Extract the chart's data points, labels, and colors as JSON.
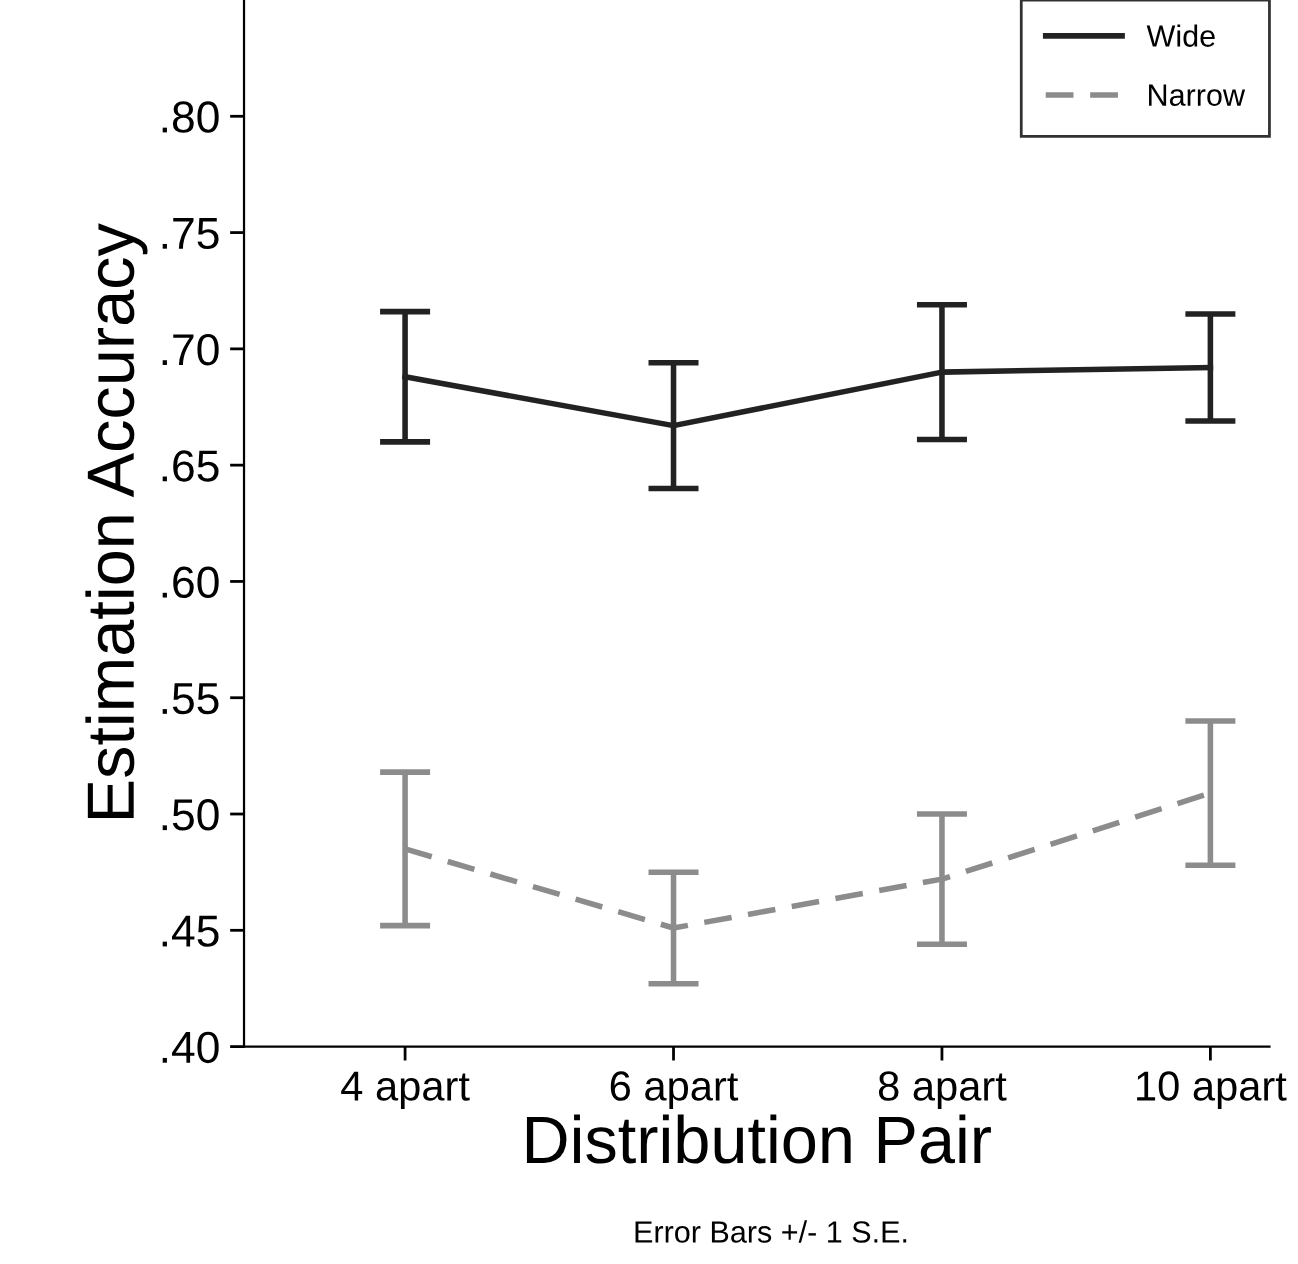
{
  "chart_data": {
    "type": "line",
    "xlabel": "Distribution Pair",
    "ylabel": "Estimation Accuracy",
    "categories": [
      "4 apart",
      "6 apart",
      "8 apart",
      "10 apart"
    ],
    "series": [
      {
        "name": "Wide",
        "color": "#222222",
        "line_style": "solid",
        "values": [
          0.688,
          0.667,
          0.69,
          0.692
        ],
        "errors": [
          0.028,
          0.027,
          0.029,
          0.023
        ]
      },
      {
        "name": "Narrow",
        "color": "#8c8c8c",
        "line_style": "dashed",
        "values": [
          0.485,
          0.451,
          0.472,
          0.509
        ],
        "errors": [
          0.033,
          0.024,
          0.028,
          0.031
        ]
      }
    ],
    "ylim": [
      0.4,
      0.85
    ],
    "yticks": [
      {
        "value": 0.4,
        "label": ".40"
      },
      {
        "value": 0.45,
        "label": ".45"
      },
      {
        "value": 0.5,
        "label": ".50"
      },
      {
        "value": 0.55,
        "label": ".55"
      },
      {
        "value": 0.6,
        "label": ".60"
      },
      {
        "value": 0.65,
        "label": ".65"
      },
      {
        "value": 0.7,
        "label": ".70"
      },
      {
        "value": 0.75,
        "label": ".75"
      },
      {
        "value": 0.8,
        "label": ".80"
      }
    ],
    "grid": false,
    "legend": "top right",
    "marker": "none",
    "annotations": [
      "Error Bars +/- 1 S.E."
    ]
  }
}
